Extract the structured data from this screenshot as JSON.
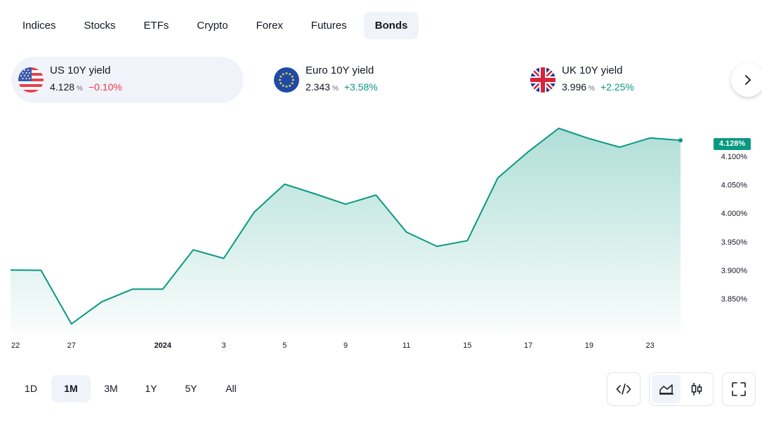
{
  "tabs": [
    {
      "label": "Indices",
      "active": false
    },
    {
      "label": "Stocks",
      "active": false
    },
    {
      "label": "ETFs",
      "active": false
    },
    {
      "label": "Crypto",
      "active": false
    },
    {
      "label": "Forex",
      "active": false
    },
    {
      "label": "Futures",
      "active": false
    },
    {
      "label": "Bonds",
      "active": true
    }
  ],
  "tickers": [
    {
      "name": "US 10Y yield",
      "value": "4.128",
      "unit": "%",
      "change": "−0.10%",
      "direction": "down",
      "flag": "us-flag-icon"
    },
    {
      "name": "Euro 10Y yield",
      "value": "2.343",
      "unit": "%",
      "change": "+3.58%",
      "direction": "up",
      "flag": "eu-flag-icon"
    },
    {
      "name": "UK 10Y yield",
      "value": "3.996",
      "unit": "%",
      "change": "+2.25%",
      "direction": "up",
      "flag": "uk-flag-icon"
    }
  ],
  "colors": {
    "positive": "#089981",
    "negative": "#f23645",
    "line": "#089981",
    "active_bg": "#f0f3fa"
  },
  "chart_data": {
    "type": "area",
    "series": [
      {
        "values": [
          3.9005,
          3.9,
          3.806,
          3.845,
          3.867,
          3.867,
          3.936,
          3.921,
          4.002,
          4.051,
          4.034,
          4.016,
          4.032,
          3.967,
          3.942,
          3.952,
          4.062,
          4.108,
          4.149,
          4.131,
          4.116,
          4.132,
          4.128
        ]
      }
    ],
    "x_tick_labels": [
      "22",
      "27",
      "2024",
      "3",
      "5",
      "9",
      "11",
      "15",
      "17",
      "19",
      "23"
    ],
    "y_tick_labels": [
      "3.850%",
      "3.900%",
      "3.950%",
      "4.000%",
      "4.050%",
      "4.100%"
    ],
    "y_ticks": [
      3.85,
      3.9,
      3.95,
      4.0,
      4.05,
      4.1
    ],
    "ylim": [
      3.79,
      4.165
    ],
    "last_price_label": "4.128%",
    "grid": false
  },
  "ranges": [
    {
      "label": "1D",
      "active": false
    },
    {
      "label": "1M",
      "active": true
    },
    {
      "label": "3M",
      "active": false
    },
    {
      "label": "1Y",
      "active": false
    },
    {
      "label": "5Y",
      "active": false
    },
    {
      "label": "All",
      "active": false
    }
  ],
  "tools": {
    "embed": "code-icon",
    "chart_types": [
      "area-chart-icon",
      "candlestick-icon"
    ],
    "active_chart_type": "area-chart-icon",
    "fullscreen": "fullscreen-icon"
  }
}
